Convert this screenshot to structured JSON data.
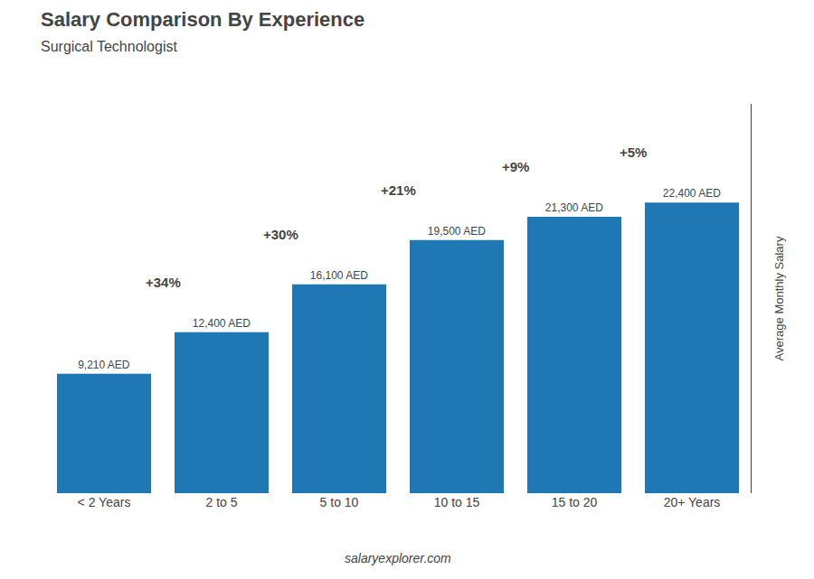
{
  "chart_data": {
    "type": "bar",
    "title": "Salary Comparison By Experience",
    "subtitle": "Surgical Technologist",
    "ylabel": "Average Monthly Salary",
    "categories": [
      "< 2 Years",
      "2 to 5",
      "5 to 10",
      "10 to 15",
      "15 to 20",
      "20+ Years"
    ],
    "values": [
      9210,
      12400,
      16100,
      19500,
      21300,
      22400
    ],
    "value_labels": [
      "9,210 AED",
      "12,400 AED",
      "16,100 AED",
      "19,500 AED",
      "21,300 AED",
      "22,400 AED"
    ],
    "data_labels": true,
    "annotations": [
      "+34%",
      "+30%",
      "+21%",
      "+9%",
      "+5%"
    ],
    "footer": "salaryexplorer.com",
    "ylim": [
      0,
      30000
    ],
    "tick_labels": "x",
    "grid": false
  }
}
